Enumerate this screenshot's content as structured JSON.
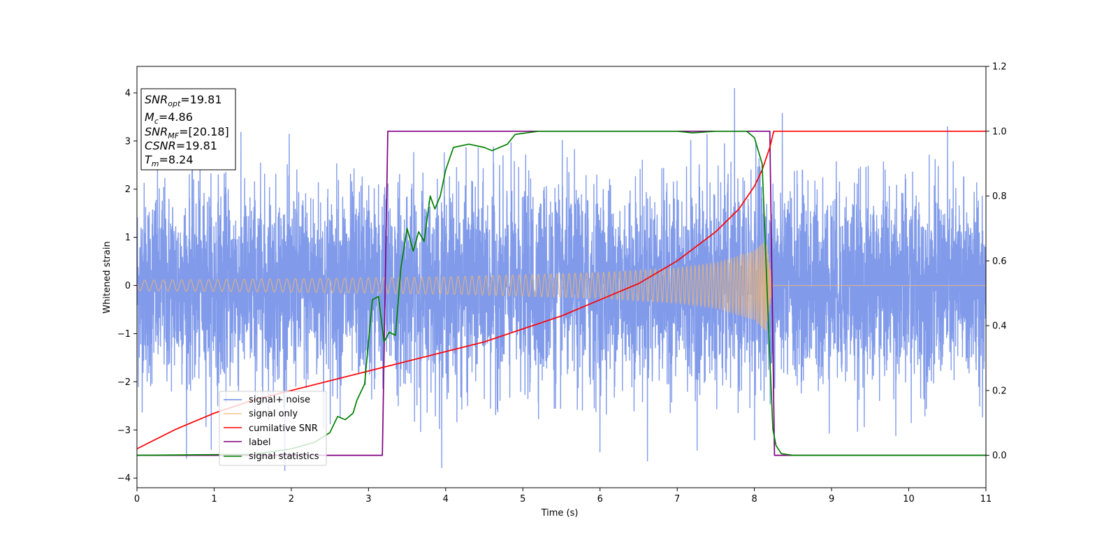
{
  "chart_data": {
    "type": "line",
    "xlabel": "Time (s)",
    "ylabel": "Whitened strain",
    "xlim": [
      0,
      11
    ],
    "ylim_left": [
      -4.2,
      4.55
    ],
    "ylim_right": [
      -0.1,
      1.2
    ],
    "x_ticks": [
      "0",
      "1",
      "2",
      "3",
      "4",
      "5",
      "6",
      "7",
      "8",
      "9",
      "10",
      "11"
    ],
    "y_ticks_left": [
      "−4",
      "−3",
      "−2",
      "−1",
      "0",
      "1",
      "2",
      "3",
      "4"
    ],
    "y_ticks_right": [
      "0.0",
      "0.2",
      "0.4",
      "0.6",
      "0.8",
      "1.0",
      "1.2"
    ],
    "info_box": {
      "snr_opt": {
        "base": "SNR",
        "sub": "opt",
        "value": "=19.81"
      },
      "mc": {
        "base": "M",
        "sub": "c",
        "value": "=4.86"
      },
      "snr_mf": {
        "base": "SNR",
        "sub": "MF",
        "value": "=[20.18]"
      },
      "csnr": {
        "base": "CSNR",
        "value": "=19.81"
      },
      "tm": {
        "base": "T",
        "sub": "m",
        "value": "=8.24"
      }
    },
    "legend_position": "lower-left",
    "series": [
      {
        "name": "signal+ noise",
        "color": "#6b8ae6",
        "axis": "left",
        "description_values": {
          "noise_sigma": 1.0,
          "t_range": [
            0,
            11
          ]
        }
      },
      {
        "name": "signal only",
        "color": "#f5b56a",
        "axis": "left",
        "envelope": {
          "t": [
            0,
            2,
            4,
            6,
            7,
            7.5,
            8.0,
            8.15,
            8.24
          ],
          "amp": [
            0.11,
            0.14,
            0.18,
            0.27,
            0.37,
            0.47,
            0.72,
            0.95,
            0.0
          ]
        }
      },
      {
        "name": "cumilative SNR",
        "color": "#ff0000",
        "axis": "right",
        "x": [
          0,
          0.5,
          1,
          1.5,
          2,
          2.5,
          3,
          3.5,
          4,
          4.5,
          5,
          5.5,
          6,
          6.5,
          7,
          7.5,
          7.8,
          8.0,
          8.1,
          8.2,
          8.25,
          11
        ],
        "y": [
          0.02,
          0.08,
          0.13,
          0.17,
          0.2,
          0.23,
          0.26,
          0.29,
          0.32,
          0.35,
          0.39,
          0.43,
          0.48,
          0.53,
          0.6,
          0.69,
          0.76,
          0.83,
          0.88,
          0.95,
          1.0,
          1.0
        ]
      },
      {
        "name": "label",
        "color": "#800080",
        "axis": "right",
        "x": [
          0,
          3.18,
          3.25,
          8.2,
          8.26,
          11
        ],
        "y": [
          0,
          0,
          1,
          1,
          0,
          0
        ]
      },
      {
        "name": "signal statistics",
        "color": "#008000",
        "axis": "right",
        "x": [
          0,
          1.5,
          2.0,
          2.3,
          2.5,
          2.6,
          2.7,
          2.8,
          2.85,
          2.95,
          3.05,
          3.13,
          3.2,
          3.27,
          3.35,
          3.42,
          3.5,
          3.58,
          3.65,
          3.72,
          3.8,
          3.86,
          3.93,
          4.0,
          4.1,
          4.3,
          4.5,
          4.6,
          4.8,
          4.9,
          5.2,
          5.6,
          6.0,
          6.5,
          7.0,
          7.2,
          7.5,
          7.9,
          8.0,
          8.1,
          8.15,
          8.2,
          8.24,
          8.28,
          8.35,
          8.5,
          11
        ],
        "y": [
          0,
          0.003,
          0.02,
          0.04,
          0.07,
          0.12,
          0.11,
          0.13,
          0.17,
          0.22,
          0.48,
          0.49,
          0.35,
          0.38,
          0.37,
          0.58,
          0.7,
          0.63,
          0.69,
          0.66,
          0.8,
          0.76,
          0.8,
          0.88,
          0.95,
          0.96,
          0.95,
          0.94,
          0.96,
          0.99,
          1.0,
          1.0,
          1.0,
          1.0,
          1.0,
          0.995,
          1.0,
          1.0,
          0.98,
          0.9,
          0.6,
          0.3,
          0.08,
          0.03,
          0.005,
          0.0,
          0.0
        ]
      }
    ]
  }
}
